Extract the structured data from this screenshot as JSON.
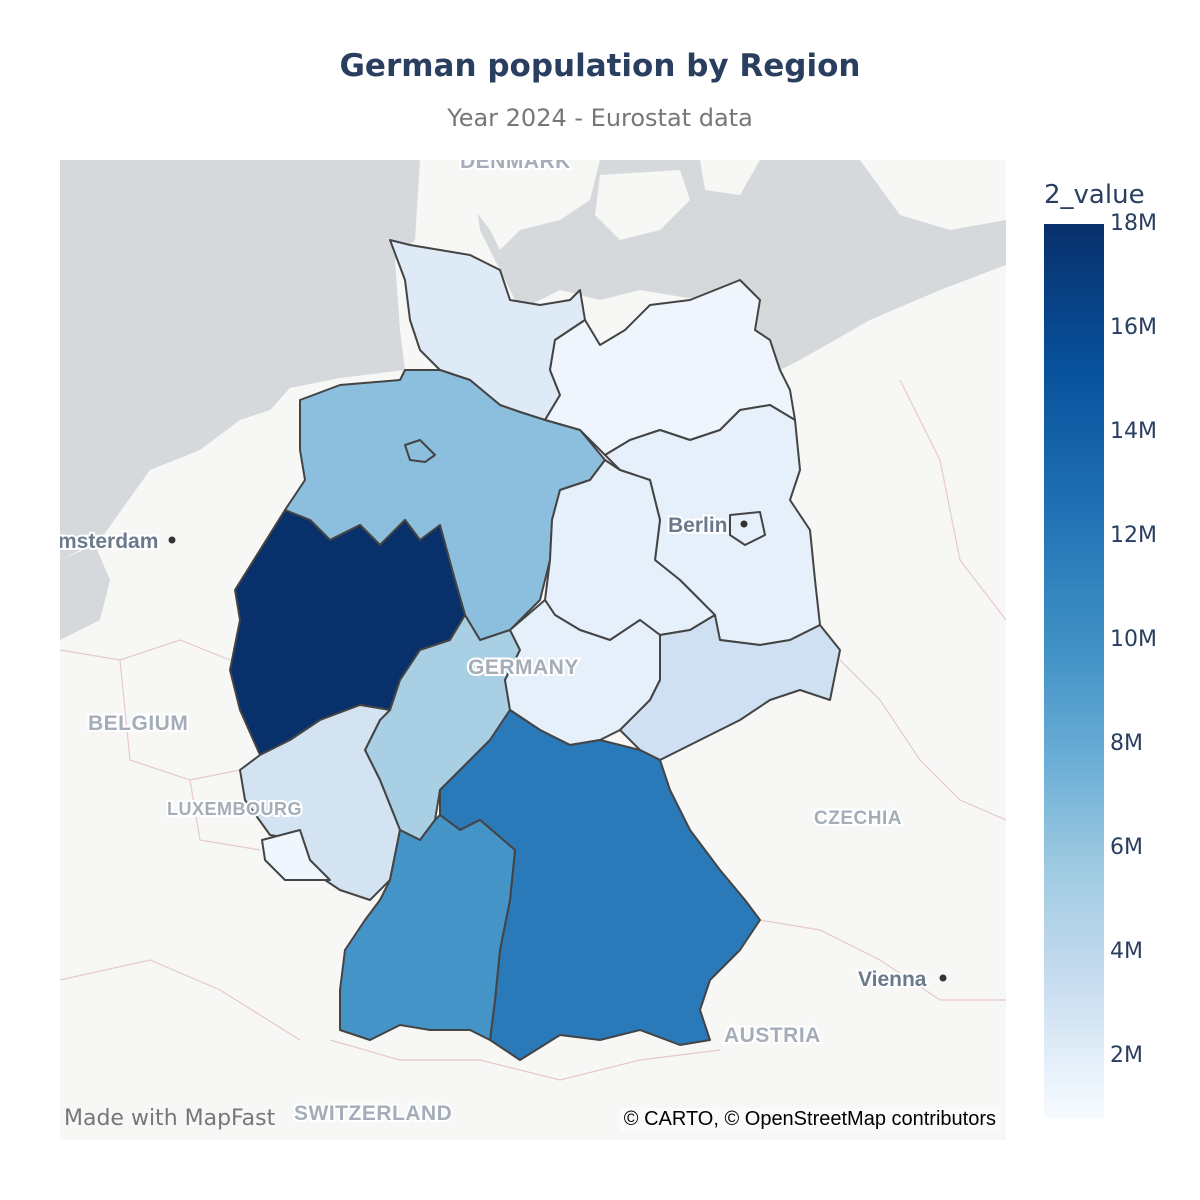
{
  "title": "German population by Region",
  "subtitle": "Year 2024 - Eurostat data",
  "map_labels": {
    "cities": [
      "msterdam",
      "Berlin",
      "Vienna"
    ],
    "countries": [
      "BELGIUM",
      "LUXEMBOURG",
      "GERMANY",
      "CZECHIA",
      "AUSTRIA",
      "SWITZERLAND",
      "DENMARK"
    ]
  },
  "colors": {
    "north_rhine_westphalia": "#08306b",
    "bavaria": "#2a79b9",
    "baden_wuerttemberg": "#4594c7",
    "lower_saxony": "#8cbfdd",
    "hesse": "#a9cfe5",
    "rhineland_palatinate": "#d3e3f2",
    "saxony": "#cfe0f2",
    "schleswig_holstein": "#deebf7",
    "thuringia": "#e6f0fa",
    "saxony_anhalt": "#e6f0fa",
    "brandenburg": "#e6f0fa",
    "mecklenburg": "#eef5fc",
    "saarland": "#f0f6fd",
    "sea": "#d5d9dc",
    "land": "#f7f7f6"
  },
  "colorbar": {
    "title": "2_value",
    "ticks": [
      "18M",
      "16M",
      "14M",
      "12M",
      "10M",
      "8M",
      "6M",
      "4M",
      "2M"
    ],
    "tick_values": [
      18000000,
      16000000,
      14000000,
      12000000,
      10000000,
      8000000,
      6000000,
      4000000,
      2000000
    ],
    "range": [
      800000,
      18000000
    ]
  },
  "footer": {
    "made_with": "Made with MapFast",
    "attribution": "© CARTO, © OpenStreetMap contributors"
  }
}
